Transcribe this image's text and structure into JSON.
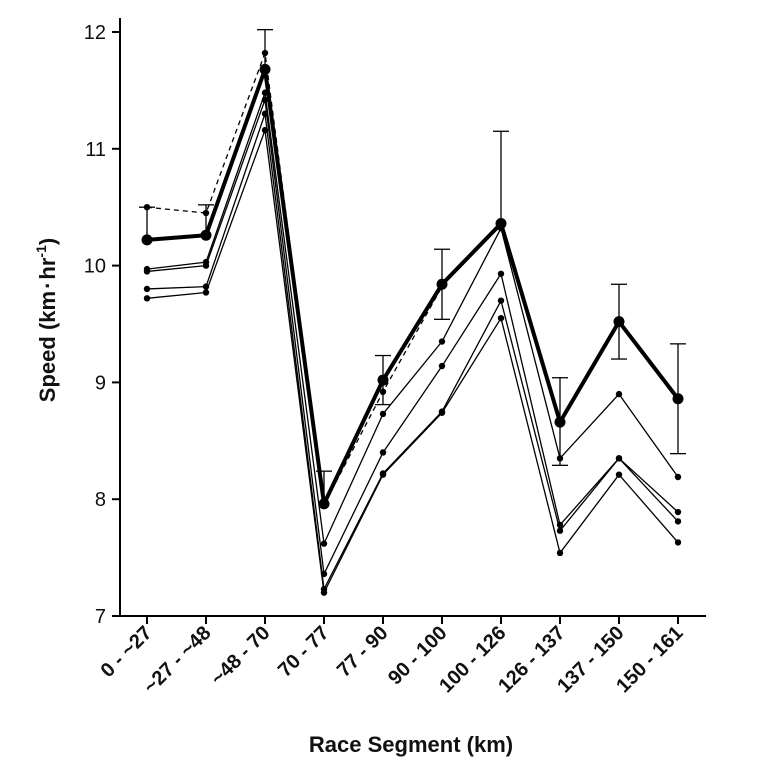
{
  "chart_data": {
    "type": "line",
    "title": "",
    "xlabel": "Race Segment (km)",
    "ylabel_main": "Speed (km",
    "ylabel_dot": "·",
    "ylabel_unit": "hr",
    "ylabel_sup": "-1",
    "ylabel_close": ")",
    "categories": [
      "0 - ~27",
      "~27 - ~48",
      "~48 - 70",
      "70 - 77",
      "77 - 90",
      "90 - 100",
      "100 - 126",
      "126 - 137",
      "137 - 150",
      "150 - 161"
    ],
    "ylim": [
      7,
      12
    ],
    "yticks": [
      7,
      8,
      9,
      10,
      11,
      12
    ],
    "grid": false,
    "series": [
      {
        "style": "bold",
        "values": [
          10.22,
          10.26,
          11.68,
          7.96,
          9.02,
          9.84,
          10.36,
          8.66,
          9.52,
          8.86
        ],
        "error_upper": [
          10.5,
          10.52,
          12.02,
          8.24,
          9.23,
          10.14,
          11.15,
          9.04,
          9.84,
          9.33
        ],
        "error_lower": [
          null,
          null,
          null,
          null,
          8.81,
          9.54,
          null,
          8.29,
          9.2,
          8.39
        ]
      },
      {
        "style": "dashed",
        "values": [
          10.5,
          10.45,
          11.82,
          7.95,
          8.92,
          9.82,
          10.37,
          8.68,
          9.52,
          8.86
        ]
      },
      {
        "style": "thin",
        "values": [
          9.97,
          10.03,
          11.48,
          7.62,
          8.73,
          9.35,
          10.32,
          8.35,
          8.9,
          8.19
        ]
      },
      {
        "style": "thin",
        "values": [
          9.95,
          10.0,
          11.42,
          7.36,
          8.4,
          9.14,
          9.93,
          7.78,
          8.35,
          7.89
        ]
      },
      {
        "style": "thin",
        "values": [
          9.8,
          9.82,
          11.3,
          7.23,
          8.22,
          8.75,
          9.7,
          7.73,
          8.35,
          7.81
        ]
      },
      {
        "style": "thin",
        "values": [
          9.72,
          9.77,
          11.16,
          7.2,
          8.21,
          8.74,
          9.55,
          7.54,
          8.21,
          7.63
        ]
      }
    ]
  }
}
